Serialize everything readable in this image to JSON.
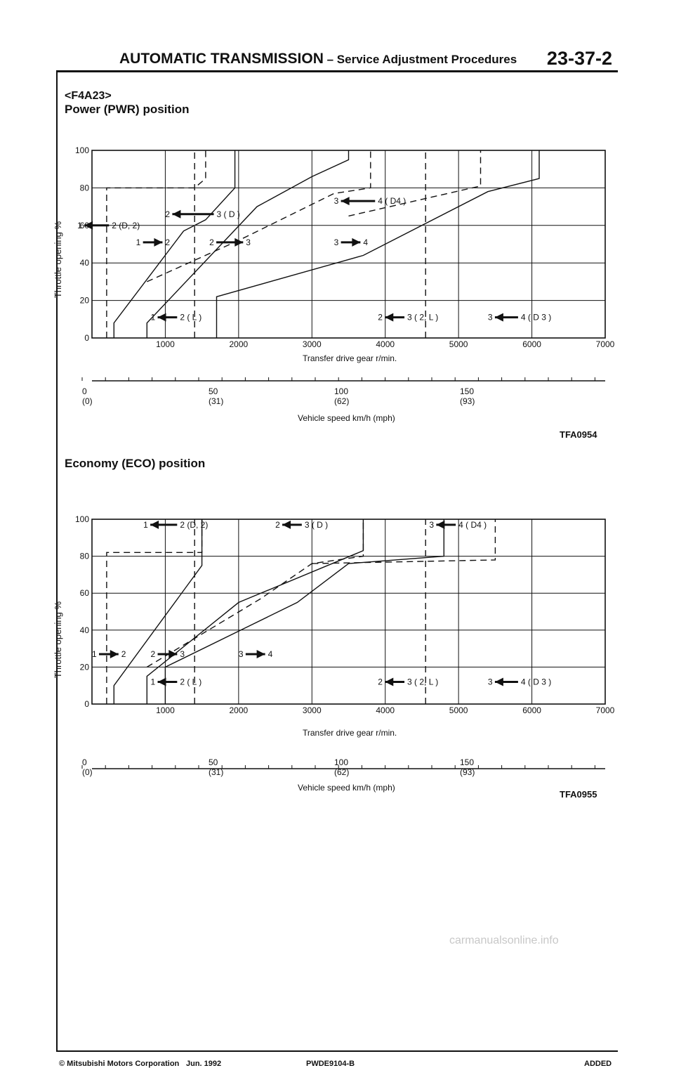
{
  "header": {
    "title_main": "AUTOMATIC TRANSMISSION",
    "title_sub": " – Service Adjustment Procedures",
    "page_number": "23-37-2"
  },
  "model_tag": "<F4A23>",
  "charts": [
    {
      "title": "Power (PWR) position",
      "figure_code": "TFA0954",
      "ylabel": "Throttle opening %",
      "xlabel": "Transfer drive gear r/min.",
      "speed_label": "Vehicle speed   km/h (mph)",
      "labels": [
        "2 (D, 2)",
        "3 ( D )",
        "4 ( D4 )",
        "2",
        "3",
        "4",
        "2 ( L )",
        "3 ( 2, L )",
        "4 ( D 3 )"
      ],
      "shift_nums": [
        "1",
        "2",
        "3",
        "1",
        "2",
        "3",
        "1",
        "2",
        "3"
      ]
    },
    {
      "title": "Economy (ECO) position",
      "figure_code": "TFA0955",
      "ylabel": "Throttle opening %",
      "xlabel": "Transfer drive gear r/min.",
      "speed_label": "Vehicle speed   km/h (mph)",
      "labels": [
        "2 (D, 2)",
        "3 ( D )",
        "4 ( D4 )",
        "2",
        "3",
        "4",
        "2 ( L )",
        "3 ( 2, L )",
        "4 ( D 3 )"
      ],
      "shift_nums": [
        "1",
        "2",
        "3",
        "1",
        "2",
        "3",
        "1",
        "2",
        "3"
      ]
    }
  ],
  "chart_data": [
    {
      "type": "line",
      "title": "Power (PWR) position",
      "xlabel": "Transfer drive gear r/min.",
      "ylabel": "Throttle opening %",
      "xlim": [
        0,
        7000
      ],
      "ylim": [
        0,
        100
      ],
      "x_ticks": [
        "1000",
        "2000",
        "3000",
        "4000",
        "5000",
        "6000",
        "7000"
      ],
      "y_ticks": [
        "0",
        "20",
        "40",
        "60",
        "80",
        "100"
      ],
      "secondary_axis": {
        "label": "Vehicle speed   km/h (mph)",
        "ticks": [
          "0",
          "50",
          "100",
          "150"
        ],
        "ticks_mph": [
          "(0)",
          "(31)",
          "(62)",
          "(93)"
        ]
      },
      "series": [
        {
          "name": "1→2 upshift",
          "style": "solid",
          "points": [
            [
              300,
              0
            ],
            [
              300,
              8
            ],
            [
              1250,
              57
            ],
            [
              1550,
              63
            ],
            [
              1950,
              80
            ],
            [
              1950,
              100
            ]
          ]
        },
        {
          "name": "2→1 downshift",
          "style": "dashed",
          "points": [
            [
              200,
              0
            ],
            [
              200,
              80
            ],
            [
              1400,
              80
            ],
            [
              1550,
              85
            ],
            [
              1550,
              100
            ]
          ]
        },
        {
          "name": "2→3 upshift",
          "style": "solid",
          "points": [
            [
              750,
              0
            ],
            [
              750,
              8
            ],
            [
              2250,
              70
            ],
            [
              3000,
              86
            ],
            [
              3500,
              95
            ],
            [
              3500,
              100
            ]
          ]
        },
        {
          "name": "3→2 downshift",
          "style": "dashed",
          "points": [
            [
              750,
              30
            ],
            [
              2000,
              52
            ],
            [
              3300,
              77
            ],
            [
              3800,
              80
            ],
            [
              3800,
              100
            ]
          ]
        },
        {
          "name": "3→4 upshift",
          "style": "solid",
          "points": [
            [
              1700,
              0
            ],
            [
              1700,
              22
            ],
            [
              3700,
              44
            ],
            [
              5400,
              78
            ],
            [
              6100,
              85
            ],
            [
              6100,
              100
            ]
          ]
        },
        {
          "name": "4→3 downshift",
          "style": "dashed",
          "points": [
            [
              3500,
              65
            ],
            [
              4400,
              73
            ],
            [
              5300,
              81
            ],
            [
              5300,
              100
            ]
          ]
        },
        {
          "name": "1-2 L hold",
          "style": "dashed",
          "points": [
            [
              1400,
              0
            ],
            [
              1400,
              100
            ]
          ]
        },
        {
          "name": "2-3 (2, L) hold",
          "style": "dashed",
          "points": [
            [
              4550,
              0
            ],
            [
              4550,
              100
            ]
          ]
        }
      ]
    },
    {
      "type": "line",
      "title": "Economy (ECO) position",
      "xlabel": "Transfer drive gear r/min.",
      "ylabel": "Throttle opening %",
      "xlim": [
        0,
        7000
      ],
      "ylim": [
        0,
        100
      ],
      "x_ticks": [
        "1000",
        "2000",
        "3000",
        "4000",
        "5000",
        "6000",
        "7000"
      ],
      "y_ticks": [
        "0",
        "20",
        "40",
        "60",
        "80",
        "100"
      ],
      "secondary_axis": {
        "label": "Vehicle speed   km/h (mph)",
        "ticks": [
          "0",
          "50",
          "100",
          "150"
        ],
        "ticks_mph": [
          "(0)",
          "(31)",
          "(62)",
          "(93)"
        ]
      },
      "series": [
        {
          "name": "1→2 upshift",
          "style": "solid",
          "points": [
            [
              300,
              0
            ],
            [
              300,
              10
            ],
            [
              1500,
              75
            ],
            [
              1500,
              100
            ]
          ]
        },
        {
          "name": "2→1 downshift",
          "style": "dashed",
          "points": [
            [
              200,
              0
            ],
            [
              200,
              82
            ],
            [
              1500,
              82
            ],
            [
              1500,
              100
            ]
          ]
        },
        {
          "name": "2→3 upshift",
          "style": "solid",
          "points": [
            [
              750,
              0
            ],
            [
              750,
              15
            ],
            [
              2000,
              55
            ],
            [
              3700,
              83
            ],
            [
              3700,
              100
            ]
          ]
        },
        {
          "name": "3→2 downshift",
          "style": "dashed",
          "points": [
            [
              750,
              20
            ],
            [
              2300,
              57
            ],
            [
              3000,
              76
            ],
            [
              3700,
              80
            ],
            [
              3700,
              100
            ]
          ]
        },
        {
          "name": "3→4 upshift",
          "style": "solid",
          "points": [
            [
              1000,
              0
            ],
            [
              1000,
              20
            ],
            [
              2800,
              55
            ],
            [
              3500,
              76
            ],
            [
              4800,
              80
            ],
            [
              4800,
              100
            ]
          ]
        },
        {
          "name": "4→3 downshift",
          "style": "dashed",
          "points": [
            [
              3000,
              76
            ],
            [
              5500,
              78
            ],
            [
              5500,
              100
            ]
          ]
        },
        {
          "name": "1-2 L hold",
          "style": "dashed",
          "points": [
            [
              1400,
              0
            ],
            [
              1400,
              100
            ]
          ]
        },
        {
          "name": "2-3 (2, L) hold",
          "style": "dashed",
          "points": [
            [
              4550,
              0
            ],
            [
              4550,
              100
            ]
          ]
        }
      ]
    }
  ],
  "footer": {
    "copyright": "© Mitsubishi Motors Corporation",
    "date": "Jun. 1992",
    "doc_code": "PWDE9104-B",
    "status": "ADDED"
  },
  "watermark": "carmanualsonline.info"
}
